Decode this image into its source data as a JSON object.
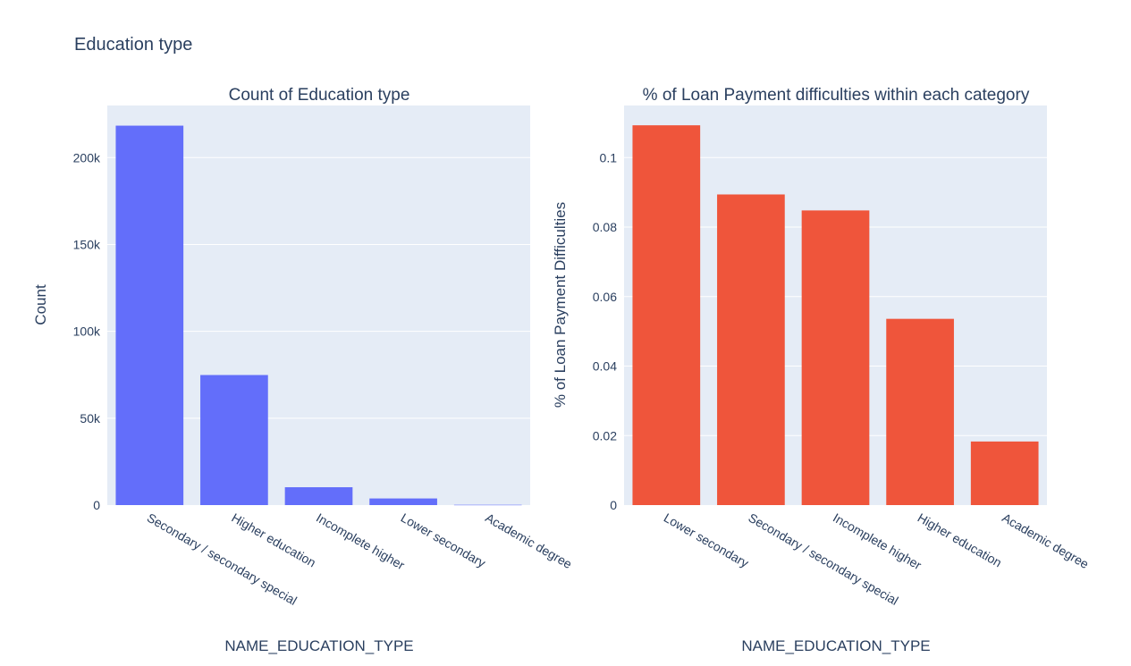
{
  "title": "Education type",
  "chart_data": [
    {
      "type": "bar",
      "title": "Count of Education type",
      "xlabel": "NAME_EDUCATION_TYPE",
      "ylabel": "Count",
      "categories": [
        "Secondary / secondary special",
        "Higher education",
        "Incomplete higher",
        "Lower secondary",
        "Academic degree"
      ],
      "values": [
        218391,
        74863,
        10277,
        3816,
        164
      ],
      "ylim": [
        0,
        230000
      ],
      "yticks": [
        0,
        50000,
        100000,
        150000,
        200000
      ],
      "ytick_labels": [
        "0",
        "50k",
        "100k",
        "150k",
        "200k"
      ],
      "color": "#636efa",
      "grid": true
    },
    {
      "type": "bar",
      "title": "% of Loan Payment difficulties within each category",
      "xlabel": "NAME_EDUCATION_TYPE",
      "ylabel": "% of Loan Payment Difficulties",
      "categories": [
        "Lower secondary",
        "Secondary / secondary special",
        "Incomplete higher",
        "Higher education",
        "Academic degree"
      ],
      "values": [
        0.1093,
        0.0894,
        0.0848,
        0.0536,
        0.0183
      ],
      "ylim": [
        0,
        0.115
      ],
      "yticks": [
        0,
        0.02,
        0.04,
        0.06,
        0.08,
        0.1
      ],
      "ytick_labels": [
        "0",
        "0.02",
        "0.04",
        "0.06",
        "0.08",
        "0.1"
      ],
      "color": "#ef553b",
      "grid": true
    }
  ]
}
